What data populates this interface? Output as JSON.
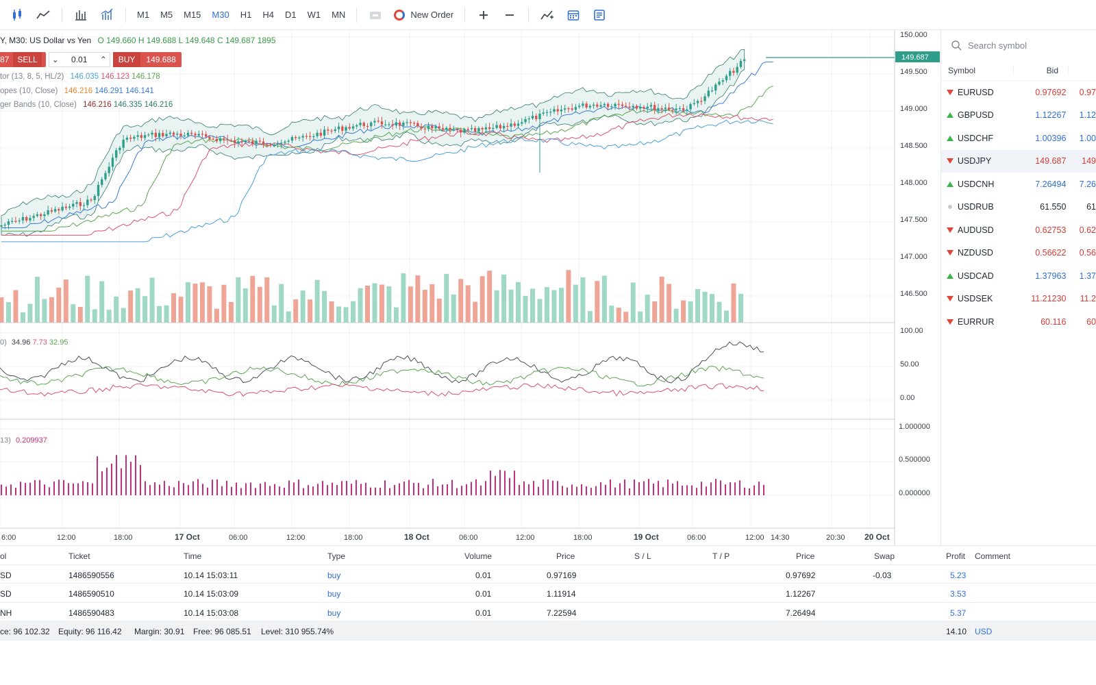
{
  "toolbar": {
    "timeframes": [
      "M1",
      "M5",
      "M15",
      "M30",
      "H1",
      "H4",
      "D1",
      "W1",
      "MN"
    ],
    "active_timeframe": "M30",
    "new_order_label": "New Order"
  },
  "chart": {
    "header": "Y, M30: US Dollar vs Yen",
    "ohlc": {
      "o": "O 149.660",
      "h": "H 149.688",
      "l": "L 149.648",
      "c": "C 149.687",
      "vol": "1895"
    },
    "trade_panel": {
      "sell_price": "87",
      "sell_label": "SELL",
      "volume": "0.01",
      "buy_label": "BUY",
      "buy_price": "149.688"
    },
    "indicators": [
      {
        "name": "tor (13, 8, 5, HL/2)",
        "values": [
          "146.035",
          "146.123",
          "146.178"
        ],
        "colors": [
          "#4a9fd8",
          "#d9526d",
          "#5aa64e"
        ]
      },
      {
        "name": "opes (10, Close)",
        "values": [
          "146.216",
          "146.291",
          "146.141"
        ],
        "colors": [
          "#e5862e",
          "#3a7bd5",
          "#3a7bd5"
        ]
      },
      {
        "name": "ger Bands (10, Close)",
        "values": [
          "146.216",
          "146.335",
          "146.216"
        ],
        "colors": [
          "#8a2d2d",
          "#2e7a6d",
          "#2e7a6d"
        ]
      }
    ],
    "stoch_label": "0)",
    "stoch_values": [
      "34.96",
      "7.73",
      "32.95"
    ],
    "atr_label": "13)",
    "atr_value": "0.209937",
    "current_price": "149.687",
    "price_axis": [
      "150.000",
      "149.500",
      "149.000",
      "148.500",
      "148.000",
      "147.500",
      "147.000",
      "146.500"
    ],
    "stoch_axis": [
      "100.00",
      "50.00",
      "0.00"
    ],
    "atr_axis": [
      "1.000000",
      "0.500000",
      "0.000000"
    ],
    "time_axis": [
      {
        "label": "6:00",
        "bold": false
      },
      {
        "label": "12:00",
        "bold": false
      },
      {
        "label": "18:00",
        "bold": false
      },
      {
        "label": "17 Oct",
        "bold": true
      },
      {
        "label": "06:00",
        "bold": false
      },
      {
        "label": "12:00",
        "bold": false
      },
      {
        "label": "18:00",
        "bold": false
      },
      {
        "label": "18 Oct",
        "bold": true
      },
      {
        "label": "06:00",
        "bold": false
      },
      {
        "label": "12:00",
        "bold": false
      },
      {
        "label": "18:00",
        "bold": false
      },
      {
        "label": "19 Oct",
        "bold": true
      },
      {
        "label": "06:00",
        "bold": false
      },
      {
        "label": "12:00",
        "bold": false
      },
      {
        "label": "14:30",
        "bold": false
      },
      {
        "label": "20:30",
        "bold": false
      },
      {
        "label": "20 Oct",
        "bold": true
      }
    ]
  },
  "watchlist": {
    "search_placeholder": "Search symbol",
    "col_symbol": "Symbol",
    "col_bid": "Bid",
    "rows": [
      {
        "symbol": "EURUSD",
        "bid": "0.97692",
        "ask": "0.97",
        "dir": "down"
      },
      {
        "symbol": "GBPUSD",
        "bid": "1.12267",
        "ask": "1.12",
        "dir": "up"
      },
      {
        "symbol": "USDCHF",
        "bid": "1.00396",
        "ask": "1.00",
        "dir": "up"
      },
      {
        "symbol": "USDJPY",
        "bid": "149.687",
        "ask": "149",
        "dir": "down"
      },
      {
        "symbol": "USDCNH",
        "bid": "7.26494",
        "ask": "7.26",
        "dir": "up"
      },
      {
        "symbol": "USDRUB",
        "bid": "61.550",
        "ask": "61",
        "dir": "none"
      },
      {
        "symbol": "AUDUSD",
        "bid": "0.62753",
        "ask": "0.62",
        "dir": "down"
      },
      {
        "symbol": "NZDUSD",
        "bid": "0.56622",
        "ask": "0.56",
        "dir": "down"
      },
      {
        "symbol": "USDCAD",
        "bid": "1.37963",
        "ask": "1.37",
        "dir": "up"
      },
      {
        "symbol": "USDSEK",
        "bid": "11.21230",
        "ask": "11.2",
        "dir": "down"
      },
      {
        "symbol": "EURRUR",
        "bid": "60.116",
        "ask": "60",
        "dir": "down"
      }
    ]
  },
  "positions": {
    "headers": {
      "symbol": "ol",
      "ticket": "Ticket",
      "time": "Time",
      "type": "Type",
      "volume": "Volume",
      "price": "Price",
      "sl": "S / L",
      "tp": "T / P",
      "cur_price": "Price",
      "swap": "Swap",
      "profit": "Profit",
      "comment": "Comment"
    },
    "rows": [
      {
        "symbol": "SD",
        "ticket": "1486590556",
        "time": "10.14 15:03:11",
        "type": "buy",
        "volume": "0.01",
        "price": "0.97169",
        "cur_price": "0.97692",
        "swap": "-0.03",
        "profit": "5.23"
      },
      {
        "symbol": "SD",
        "ticket": "1486590510",
        "time": "10.14 15:03:09",
        "type": "buy",
        "volume": "0.01",
        "price": "1.11914",
        "cur_price": "1.12267",
        "swap": "",
        "profit": "3.53"
      },
      {
        "symbol": "NH",
        "ticket": "1486590483",
        "time": "10.14 15:03:08",
        "type": "buy",
        "volume": "0.01",
        "price": "7.22594",
        "cur_price": "7.26494",
        "swap": "",
        "profit": "5.37"
      }
    ],
    "footer": {
      "balance": "ce: 96 102.32",
      "equity": "Equity: 96 116.42",
      "margin": "Margin: 30.91",
      "free": "Free: 96 085.51",
      "level": "Level: 310 955.74%",
      "total": "14.10",
      "currency": "USD"
    }
  }
}
